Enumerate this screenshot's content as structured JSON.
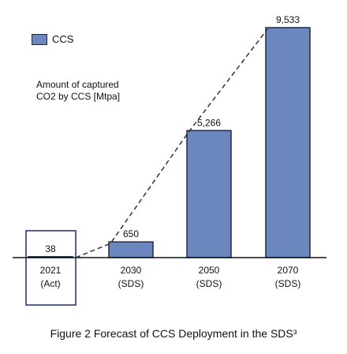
{
  "chart_data": {
    "type": "bar",
    "categories": [
      "2021\n(Act)",
      "2030\n(SDS)",
      "2050\n(SDS)",
      "2070\n(SDS)"
    ],
    "category_lines": [
      [
        "2021",
        "(Act)"
      ],
      [
        "2030",
        "(SDS)"
      ],
      [
        "2050",
        "(SDS)"
      ],
      [
        "2070",
        "(SDS)"
      ]
    ],
    "values": [
      38,
      650,
      5266,
      9533
    ],
    "value_labels": [
      "38",
      "650",
      "5,266",
      "9,533"
    ],
    "series": [
      {
        "name": "CCS",
        "values": [
          38,
          650,
          5266,
          9533
        ]
      }
    ],
    "ylim": [
      0,
      9533
    ],
    "ylabel_lines": [
      "Amount of captured",
      "CO2 by CCS [Mtpa]"
    ],
    "legend": {
      "position": "top-left",
      "entries": [
        "CCS"
      ]
    },
    "trend_line": "dashed",
    "highlight_box": "2021",
    "colors": {
      "bar": "#6b87bd",
      "bar_stroke": "#1f2a44",
      "box": "#1f2a6b"
    },
    "grid": false
  },
  "caption": "Figure 2 Forecast of CCS Deployment in the SDS³"
}
